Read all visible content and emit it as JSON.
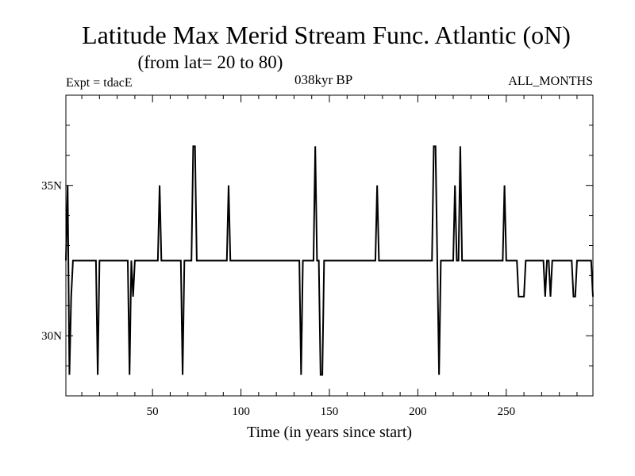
{
  "header": {
    "title": "Latitude Max Merid Stream Func. Atlantic (oN)",
    "subtitle": "(from lat= 20 to 80)",
    "experiment": "Expt = tdacE",
    "period": "038kyr BP",
    "months": "ALL_MONTHS"
  },
  "chart_data": {
    "type": "line",
    "title": "Latitude Max Merid Stream Func. Atlantic (oN)",
    "subtitle": "(from lat= 20 to 80)",
    "xlabel": "Time (in years since start)",
    "ylabel": "",
    "xlim": [
      1,
      299
    ],
    "ylim": [
      28,
      38
    ],
    "x_ticks": [
      50,
      100,
      150,
      200,
      250
    ],
    "x_tick_labels": [
      "50",
      "100",
      "150",
      "200",
      "250"
    ],
    "y_ticks": [
      30,
      35
    ],
    "y_tick_labels": [
      "30N",
      "35N"
    ],
    "grid": false,
    "legend": "none",
    "color": "#000000",
    "series": [
      {
        "x": [
          1,
          2,
          3,
          4,
          5,
          6,
          18,
          19,
          20,
          36,
          37,
          38,
          39,
          40,
          41,
          53,
          54,
          55,
          65,
          66,
          67,
          68,
          72,
          73,
          74,
          75,
          92,
          93,
          94,
          95,
          133,
          134,
          135,
          136,
          141,
          142,
          143,
          144,
          145,
          146,
          147,
          149,
          150,
          176,
          177,
          178,
          179,
          208,
          209,
          210,
          211,
          212,
          213,
          214,
          220,
          221,
          222,
          223,
          224,
          225,
          226,
          227,
          248,
          249,
          250,
          251,
          256,
          257,
          260,
          261,
          271,
          272,
          273,
          274,
          275,
          276,
          277,
          287,
          288,
          289,
          290,
          298,
          299
        ],
        "y": [
          32.5,
          35,
          28.7,
          31.3,
          32.5,
          32.5,
          32.5,
          28.7,
          32.5,
          32.5,
          28.7,
          32.5,
          31.3,
          32.5,
          32.5,
          32.5,
          35,
          32.5,
          32.5,
          32.5,
          28.7,
          32.5,
          32.5,
          36.3,
          36.3,
          32.5,
          32.5,
          35,
          32.5,
          32.5,
          32.5,
          28.7,
          32.5,
          32.5,
          32.5,
          36.3,
          32.5,
          32.5,
          28.7,
          28.7,
          32.5,
          32.5,
          32.5,
          32.5,
          35,
          32.5,
          32.5,
          32.5,
          36.3,
          36.3,
          32.5,
          28.7,
          32.5,
          32.5,
          32.5,
          35,
          32.5,
          32.5,
          36.3,
          32.5,
          32.5,
          32.5,
          32.5,
          35,
          32.5,
          32.5,
          32.5,
          31.3,
          31.3,
          32.5,
          32.5,
          31.3,
          32.5,
          32.5,
          31.3,
          32.5,
          32.5,
          32.5,
          31.3,
          31.3,
          32.5,
          32.5,
          31.3
        ]
      }
    ]
  }
}
